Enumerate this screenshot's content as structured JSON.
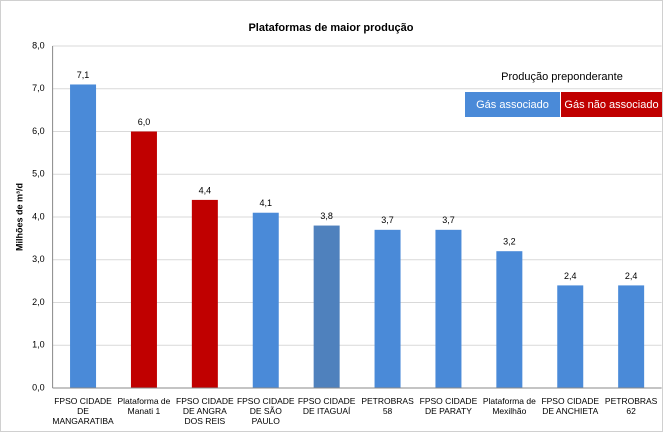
{
  "chart_data": {
    "type": "bar",
    "title": "Plataformas de maior produção",
    "y_label": "Milhões de m³/d",
    "categories": [
      "FPSO CIDADE DE MANGARATIBA",
      "Plataforma de Manati 1",
      "FPSO CIDADE DE ANGRA DOS REIS",
      "FPSO CIDADE DE SÃO PAULO",
      "FPSO CIDADE DE ITAGUAÍ",
      "PETROBRAS 58",
      "FPSO CIDADE DE PARATY",
      "Plataforma de Mexilhão",
      "FPSO CIDADE DE ANCHIETA",
      "PETROBRAS 62"
    ],
    "values": [
      7.1,
      6.0,
      4.4,
      4.1,
      3.8,
      3.7,
      3.7,
      3.2,
      2.4,
      2.4
    ],
    "value_labels": [
      "7,1",
      "6,0",
      "4,4",
      "4,1",
      "3,8",
      "3,7",
      "3,7",
      "3,2",
      "2,4",
      "2,4"
    ],
    "colors": [
      "#4a8ad8",
      "#c00000",
      "#c00000",
      "#4a8ad8",
      "#4f81bd",
      "#4a8ad8",
      "#4a8ad8",
      "#4a8ad8",
      "#4a8ad8",
      "#4a8ad8"
    ],
    "ylim": [
      0,
      8
    ],
    "yticks": [
      {
        "value": 0,
        "label": "0,0"
      },
      {
        "value": 1,
        "label": "1,0"
      },
      {
        "value": 2,
        "label": "2,0"
      },
      {
        "value": 3,
        "label": "3,0"
      },
      {
        "value": 4,
        "label": "4,0"
      },
      {
        "value": 5,
        "label": "5,0"
      },
      {
        "value": 6,
        "label": "6,0"
      },
      {
        "value": 7,
        "label": "7,0"
      },
      {
        "value": 8,
        "label": "8,0"
      }
    ],
    "grid": true,
    "legend": {
      "title": "Produção preponderante",
      "items": [
        {
          "name": "Gás associado",
          "color": "#4a8ad8"
        },
        {
          "name": "Gás não associado",
          "color": "#c00000"
        }
      ]
    }
  }
}
